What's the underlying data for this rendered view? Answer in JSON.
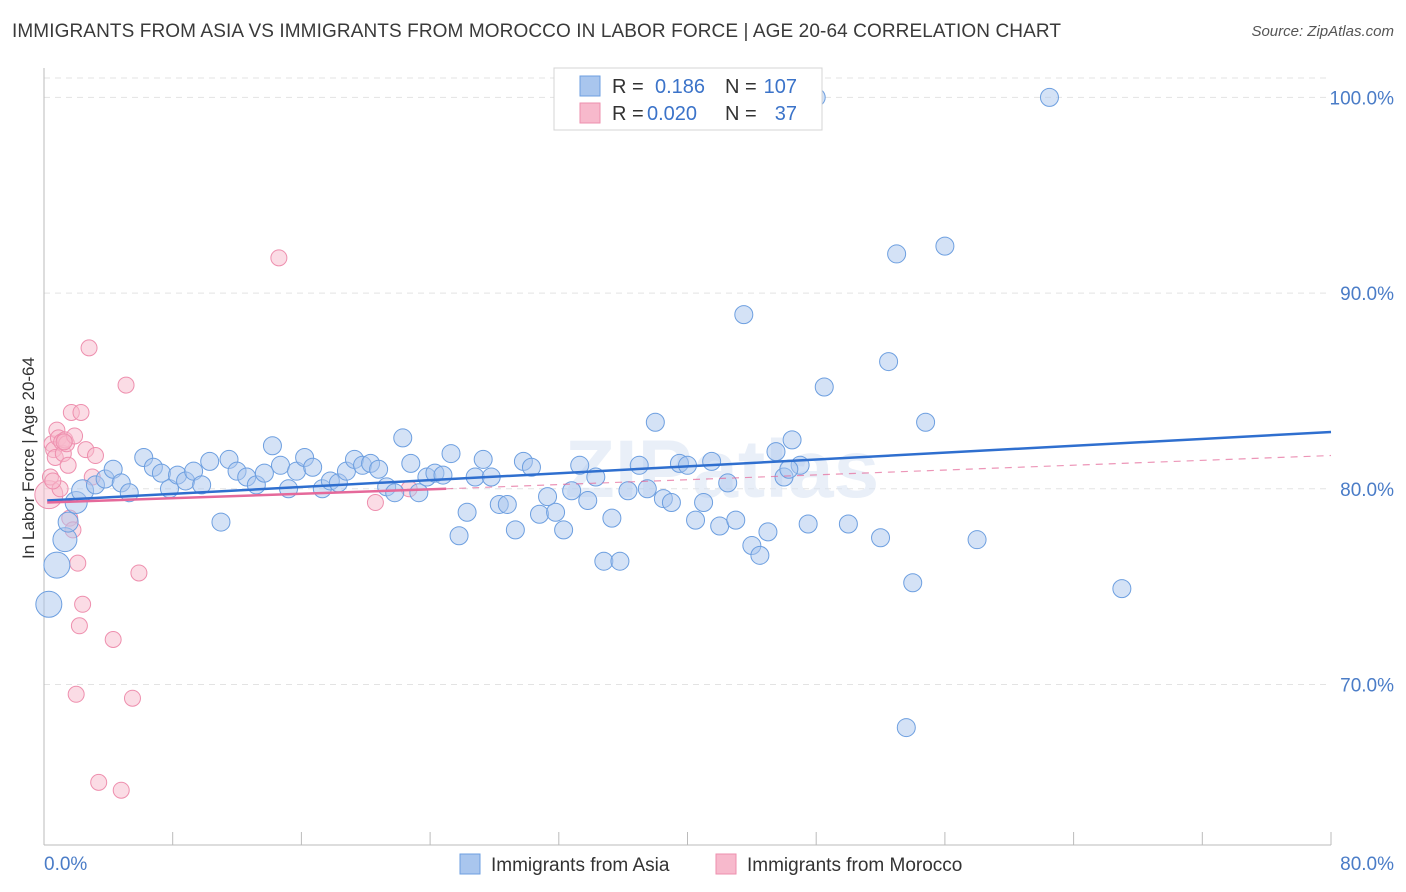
{
  "title": "IMMIGRANTS FROM ASIA VS IMMIGRANTS FROM MOROCCO IN LABOR FORCE | AGE 20-64 CORRELATION CHART",
  "source": "Source: ZipAtlas.com",
  "watermark": "ZIPatlas",
  "colors": {
    "asia_fill": "#a9c6ee",
    "asia_stroke": "#6d9fe0",
    "asia_line": "#2f6fcf",
    "morocco_fill": "#f7b9cc",
    "morocco_stroke": "#ee8fae",
    "morocco_line": "#e5699a",
    "grid": "#e3e3e3",
    "tick_label": "#4a7cc7"
  },
  "legend": {
    "rows": [
      {
        "r_label": "R =",
        "r_value": "0.186",
        "n_label": "N =",
        "n_value": "107"
      },
      {
        "r_label": "R =",
        "r_value": "0.020",
        "n_label": "N =",
        "n_value": "37"
      }
    ]
  },
  "chart_data": {
    "type": "scatter",
    "title": "IMMIGRANTS FROM ASIA VS IMMIGRANTS FROM MOROCCO IN LABOR FORCE | AGE 20-64 CORRELATION CHART",
    "xlabel": "",
    "ylabel": "In Labor Force | Age 20-64",
    "xlim": [
      0,
      80
    ],
    "ylim": [
      61.8,
      101.5
    ],
    "x_tick_labels": [
      "0.0%",
      "80.0%"
    ],
    "y_ticks": [
      70,
      80,
      90,
      100
    ],
    "y_tick_labels": [
      "70.0%",
      "80.0%",
      "90.0%",
      "100.0%"
    ],
    "grid": true,
    "legend_position": "bottom",
    "series": [
      {
        "name": "Immigrants from Asia",
        "r": 0.186,
        "n": 107,
        "trend": {
          "x": [
            0.2,
            80
          ],
          "y": [
            79.4,
            82.9
          ]
        },
        "points": [
          [
            0.3,
            74.1
          ],
          [
            0.8,
            76.1
          ],
          [
            1.3,
            77.4
          ],
          [
            1.5,
            78.3
          ],
          [
            2.0,
            79.3
          ],
          [
            2.4,
            79.9
          ],
          [
            3.2,
            80.2
          ],
          [
            3.8,
            80.5
          ],
          [
            4.3,
            81.0
          ],
          [
            4.8,
            80.3
          ],
          [
            5.3,
            79.8
          ],
          [
            6.2,
            81.6
          ],
          [
            6.8,
            81.1
          ],
          [
            7.3,
            80.8
          ],
          [
            7.8,
            80.0
          ],
          [
            8.3,
            80.7
          ],
          [
            8.8,
            80.4
          ],
          [
            9.3,
            80.9
          ],
          [
            9.8,
            80.2
          ],
          [
            10.3,
            81.4
          ],
          [
            11.0,
            78.3
          ],
          [
            11.5,
            81.5
          ],
          [
            12.0,
            80.9
          ],
          [
            12.6,
            80.6
          ],
          [
            13.2,
            80.2
          ],
          [
            13.7,
            80.8
          ],
          [
            14.2,
            82.2
          ],
          [
            14.7,
            81.2
          ],
          [
            15.2,
            80.0
          ],
          [
            15.7,
            80.9
          ],
          [
            16.2,
            81.6
          ],
          [
            16.7,
            81.1
          ],
          [
            17.3,
            80.0
          ],
          [
            17.8,
            80.4
          ],
          [
            18.3,
            80.3
          ],
          [
            18.8,
            80.9
          ],
          [
            19.3,
            81.5
          ],
          [
            19.8,
            81.2
          ],
          [
            20.3,
            81.3
          ],
          [
            20.8,
            81.0
          ],
          [
            21.3,
            80.1
          ],
          [
            21.8,
            79.8
          ],
          [
            22.3,
            82.6
          ],
          [
            22.8,
            81.3
          ],
          [
            23.3,
            79.8
          ],
          [
            23.8,
            80.6
          ],
          [
            24.3,
            80.8
          ],
          [
            24.8,
            80.7
          ],
          [
            25.3,
            81.8
          ],
          [
            25.8,
            77.6
          ],
          [
            26.3,
            78.8
          ],
          [
            26.8,
            80.6
          ],
          [
            27.3,
            81.5
          ],
          [
            27.8,
            80.6
          ],
          [
            28.3,
            79.2
          ],
          [
            28.8,
            79.2
          ],
          [
            29.3,
            77.9
          ],
          [
            29.8,
            81.4
          ],
          [
            30.3,
            81.1
          ],
          [
            30.8,
            78.7
          ],
          [
            31.3,
            79.6
          ],
          [
            31.8,
            78.8
          ],
          [
            32.3,
            77.9
          ],
          [
            32.8,
            79.9
          ],
          [
            33.3,
            81.2
          ],
          [
            33.8,
            79.4
          ],
          [
            34.3,
            80.6
          ],
          [
            34.8,
            76.3
          ],
          [
            35.3,
            78.5
          ],
          [
            35.8,
            76.3
          ],
          [
            36.3,
            79.9
          ],
          [
            37.0,
            81.2
          ],
          [
            37.5,
            80.0
          ],
          [
            38.0,
            83.4
          ],
          [
            38.5,
            79.5
          ],
          [
            39.0,
            79.3
          ],
          [
            39.5,
            81.3
          ],
          [
            40.0,
            81.2
          ],
          [
            40.5,
            78.4
          ],
          [
            41.0,
            79.3
          ],
          [
            41.5,
            81.4
          ],
          [
            42.0,
            78.1
          ],
          [
            42.5,
            80.3
          ],
          [
            43.0,
            78.4
          ],
          [
            43.5,
            88.9
          ],
          [
            44.0,
            77.1
          ],
          [
            44.5,
            76.6
          ],
          [
            45.0,
            77.8
          ],
          [
            45.5,
            81.9
          ],
          [
            46.0,
            80.6
          ],
          [
            46.5,
            82.5
          ],
          [
            47.0,
            81.2
          ],
          [
            47.5,
            78.2
          ],
          [
            48.0,
            100.0
          ],
          [
            48.5,
            85.2
          ],
          [
            50.0,
            78.2
          ],
          [
            52.0,
            77.5
          ],
          [
            52.5,
            86.5
          ],
          [
            53.0,
            92.0
          ],
          [
            54.0,
            75.2
          ],
          [
            56.0,
            92.4
          ],
          [
            58.0,
            77.4
          ],
          [
            62.5,
            100.0
          ],
          [
            67.0,
            74.9
          ],
          [
            53.6,
            67.8
          ],
          [
            54.8,
            83.4
          ],
          [
            46.3,
            81.0
          ]
        ]
      },
      {
        "name": "Immigrants from Morocco",
        "r": 0.02,
        "n": 37,
        "trend": {
          "x": [
            0.2,
            25.0
          ],
          "y": [
            79.3,
            80.0
          ]
        },
        "dashed_extension": {
          "x": [
            25.0,
            80
          ],
          "y": [
            80.0,
            81.7
          ]
        },
        "points": [
          [
            0.3,
            79.7
          ],
          [
            0.4,
            80.6
          ],
          [
            0.5,
            82.3
          ],
          [
            0.6,
            82.0
          ],
          [
            0.7,
            81.6
          ],
          [
            0.8,
            83.0
          ],
          [
            0.9,
            82.6
          ],
          [
            1.0,
            80.0
          ],
          [
            1.1,
            82.4
          ],
          [
            1.2,
            81.8
          ],
          [
            1.3,
            82.5
          ],
          [
            1.4,
            82.3
          ],
          [
            1.5,
            81.2
          ],
          [
            1.6,
            78.5
          ],
          [
            1.7,
            83.9
          ],
          [
            1.8,
            77.9
          ],
          [
            1.9,
            82.7
          ],
          [
            2.0,
            69.5
          ],
          [
            2.1,
            76.2
          ],
          [
            2.2,
            73.0
          ],
          [
            2.3,
            83.9
          ],
          [
            2.4,
            74.1
          ],
          [
            2.6,
            82.0
          ],
          [
            2.8,
            87.2
          ],
          [
            3.0,
            80.6
          ],
          [
            3.2,
            81.7
          ],
          [
            3.4,
            65.0
          ],
          [
            4.3,
            72.3
          ],
          [
            4.8,
            64.6
          ],
          [
            5.1,
            85.3
          ],
          [
            5.5,
            69.3
          ],
          [
            5.9,
            75.7
          ],
          [
            14.6,
            91.8
          ],
          [
            20.6,
            79.3
          ],
          [
            22.7,
            80.0
          ],
          [
            1.25,
            82.4
          ],
          [
            0.55,
            80.4
          ]
        ]
      }
    ]
  },
  "bottom_legend": [
    "Immigrants from Asia",
    "Immigrants from Morocco"
  ]
}
